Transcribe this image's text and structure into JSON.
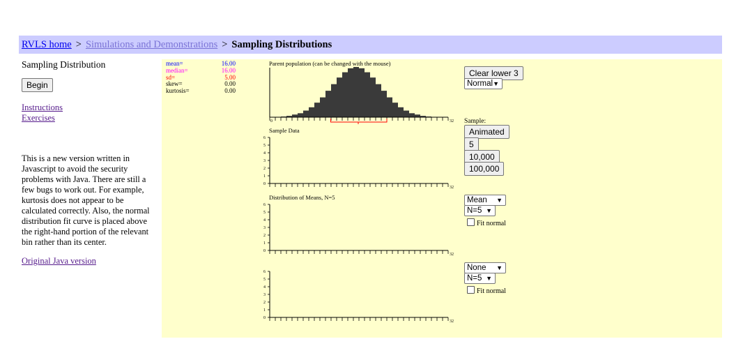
{
  "breadcrumb": {
    "home": "RVLS home",
    "separator": ">",
    "simulations": "Simulations and Demonstrations",
    "current": "Sampling Distributions"
  },
  "sidebar": {
    "title": "Sampling Distribution",
    "begin_button": "Begin",
    "instructions_link": "Instructions",
    "exercises_link": "Exercises",
    "note": "This is a new version written in Javascript to avoid the security problems with Java. There are still a few bugs to work out. For example, kurtosis does not appear to be calculated correctly. Also, the normal distribution fit curve is placed above the right-hand portion of the relevant bin rather than its center.",
    "java_link": "Original Java version"
  },
  "stats": [
    {
      "label": "mean=",
      "value": "16.00",
      "color": "#0000ff"
    },
    {
      "label": "median=",
      "value": "16.00",
      "color": "#ff00ff"
    },
    {
      "label": "sd=",
      "value": "5.00",
      "color": "#ff0000"
    },
    {
      "label": "skew=",
      "value": "0.00",
      "color": "#000000"
    },
    {
      "label": "kurtosis=",
      "value": "0.00",
      "color": "#000000"
    }
  ],
  "parent": {
    "title": "Parent population (can be changed with the mouse)",
    "x_min_label": "0",
    "x_max_label": "32",
    "heights": [
      0.2,
      0.5,
      1,
      2,
      4,
      6,
      10,
      15,
      22,
      30,
      40,
      50,
      60,
      68,
      74,
      76,
      74,
      68,
      60,
      50,
      40,
      30,
      22,
      15,
      10,
      6,
      4,
      2,
      1,
      0.5,
      0.2,
      0.1
    ],
    "bar_color": "#3a3a3a",
    "sd_bracket_color": "#ff0000"
  },
  "charts": {
    "sample": {
      "title": "Sample Data"
    },
    "means": {
      "title": "Distribution of Means, N=5"
    },
    "fourth": {
      "title": ""
    }
  },
  "axis": {
    "y_ticks": [
      "6",
      "5",
      "4",
      "3",
      "2",
      "1",
      "0"
    ],
    "x_max_label": "32"
  },
  "controls": {
    "clear_button": "Clear lower 3",
    "parent_shape_select": "Normal",
    "sample_label": "Sample:",
    "animated_button": "Animated",
    "btn_5": "5",
    "btn_10000": "10,000",
    "btn_100000": "100,000",
    "stat_select_1": "Mean",
    "n_select_1": "N=5",
    "fit_normal_1": "Fit normal",
    "stat_select_2": "None",
    "n_select_2": "N=5",
    "fit_normal_2": "Fit normal"
  }
}
